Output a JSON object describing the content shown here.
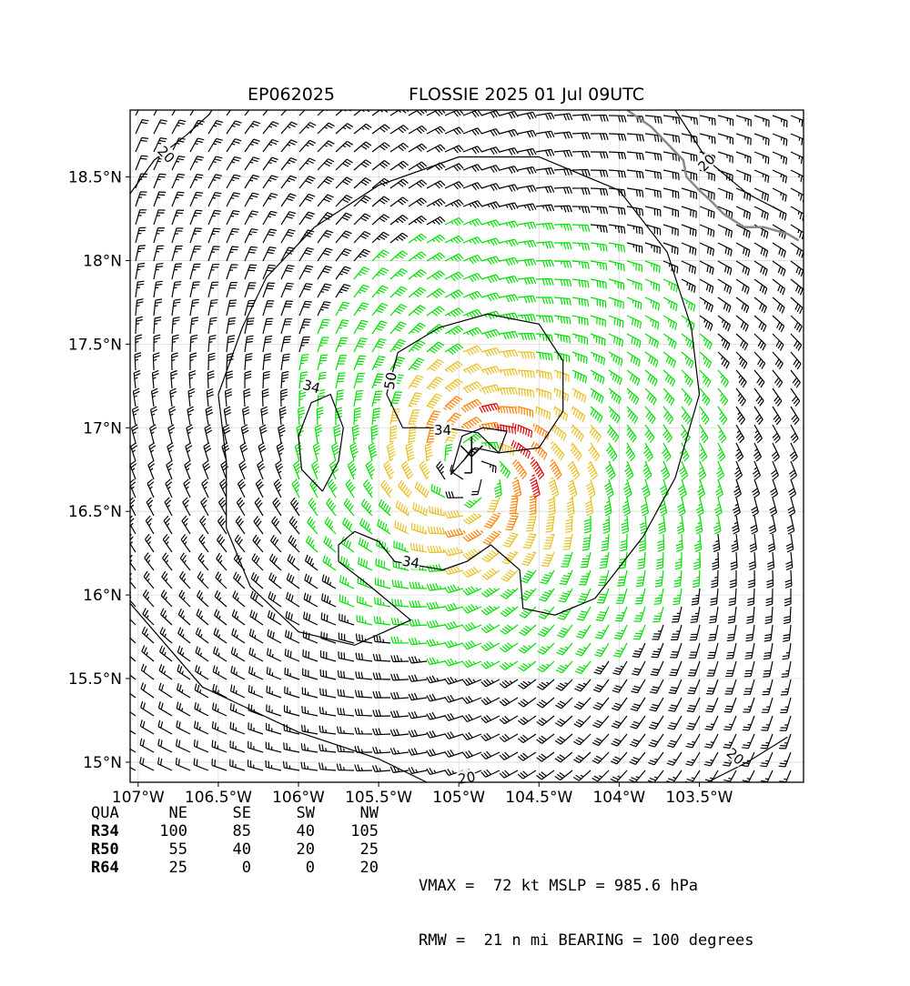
{
  "header": {
    "storm_id": "EP062025",
    "storm_title": "FLOSSIE 2025 01 Jul 09UTC"
  },
  "chart_data": {
    "type": "wind_barb_map",
    "title_left": "EP062025",
    "title_right": "FLOSSIE 2025 01 Jul 09UTC",
    "xlim": [
      -107.05,
      -102.85
    ],
    "ylim": [
      14.88,
      18.9
    ],
    "x_ticks": [
      {
        "value": -107.0,
        "label": "107°W"
      },
      {
        "value": -106.5,
        "label": "106.5°W"
      },
      {
        "value": -106.0,
        "label": "106°W"
      },
      {
        "value": -105.5,
        "label": "105.5°W"
      },
      {
        "value": -105.0,
        "label": "105°W"
      },
      {
        "value": -104.5,
        "label": "104.5°W"
      },
      {
        "value": -104.0,
        "label": "104°W"
      },
      {
        "value": -103.5,
        "label": "103.5°W"
      }
    ],
    "y_ticks": [
      {
        "value": 15.0,
        "label": "15°N"
      },
      {
        "value": 15.5,
        "label": "15.5°N"
      },
      {
        "value": 16.0,
        "label": "16°N"
      },
      {
        "value": 16.5,
        "label": "16.5°N"
      },
      {
        "value": 17.0,
        "label": "17°N"
      },
      {
        "value": 17.5,
        "label": "17.5°N"
      },
      {
        "value": 18.0,
        "label": "18°N"
      },
      {
        "value": 18.5,
        "label": "18.5°N"
      }
    ],
    "grid": true,
    "center": {
      "lon": -104.92,
      "lat": 16.73
    },
    "rmw_deg": 0.35,
    "vmax_kt": 72,
    "wind_categories": [
      {
        "min_kt": 0,
        "max_kt": 34,
        "color": "#000000"
      },
      {
        "min_kt": 34,
        "max_kt": 50,
        "color": "#00e000"
      },
      {
        "min_kt": 50,
        "max_kt": 64,
        "color": "#e8c020"
      },
      {
        "min_kt": 64,
        "max_kt": 72,
        "color": "#ff7f00"
      },
      {
        "min_kt": 72,
        "max_kt": 200,
        "color": "#e00000"
      }
    ],
    "contours": [
      {
        "level": "34",
        "points": [
          [
            -105.75,
            16.2
          ],
          [
            -105.55,
            16.05
          ],
          [
            -105.3,
            15.85
          ],
          [
            -105.65,
            15.7
          ],
          [
            -106.0,
            15.78
          ],
          [
            -106.3,
            16.05
          ],
          [
            -106.45,
            16.4
          ],
          [
            -106.45,
            16.8
          ],
          [
            -106.5,
            17.2
          ],
          [
            -106.35,
            17.6
          ],
          [
            -106.2,
            17.9
          ],
          [
            -105.9,
            18.2
          ],
          [
            -105.5,
            18.45
          ],
          [
            -105.0,
            18.62
          ],
          [
            -104.5,
            18.62
          ],
          [
            -104.0,
            18.42
          ],
          [
            -103.7,
            18.05
          ],
          [
            -103.55,
            17.6
          ],
          [
            -103.5,
            17.2
          ],
          [
            -103.65,
            16.7
          ],
          [
            -103.85,
            16.35
          ],
          [
            -104.15,
            15.98
          ],
          [
            -104.4,
            15.88
          ],
          [
            -104.6,
            15.92
          ],
          [
            -104.62,
            16.15
          ],
          [
            -104.8,
            16.3
          ],
          [
            -104.95,
            16.2
          ],
          [
            -105.1,
            16.15
          ],
          [
            -105.4,
            16.2
          ],
          [
            -105.5,
            16.32
          ],
          [
            -105.65,
            16.38
          ],
          [
            -105.75,
            16.3
          ],
          [
            -105.75,
            16.2
          ]
        ]
      },
      {
        "level": "34",
        "points": [
          [
            -105.85,
            16.62
          ],
          [
            -105.98,
            16.75
          ],
          [
            -106.0,
            16.95
          ],
          [
            -105.92,
            17.15
          ],
          [
            -105.8,
            17.2
          ],
          [
            -105.72,
            17.0
          ],
          [
            -105.75,
            16.8
          ],
          [
            -105.85,
            16.62
          ]
        ]
      },
      {
        "level": "34",
        "points": [
          [
            -105.05,
            16.72
          ],
          [
            -104.98,
            16.95
          ],
          [
            -104.85,
            17.0
          ],
          [
            -104.7,
            16.98
          ],
          [
            -104.75,
            16.85
          ],
          [
            -104.9,
            16.88
          ],
          [
            -105.05,
            16.72
          ]
        ]
      },
      {
        "level": "50",
        "points": [
          [
            -105.35,
            17.0
          ],
          [
            -105.45,
            17.2
          ],
          [
            -105.38,
            17.45
          ],
          [
            -105.12,
            17.6
          ],
          [
            -104.82,
            17.68
          ],
          [
            -104.5,
            17.62
          ],
          [
            -104.35,
            17.4
          ],
          [
            -104.35,
            17.1
          ],
          [
            -104.5,
            16.88
          ],
          [
            -104.75,
            16.85
          ],
          [
            -104.88,
            16.97
          ],
          [
            -105.08,
            17.0
          ],
          [
            -105.35,
            17.0
          ]
        ]
      },
      {
        "level": "20",
        "points": [
          [
            -107.05,
            18.4
          ],
          [
            -106.9,
            18.6
          ],
          [
            -106.7,
            18.75
          ],
          [
            -106.55,
            18.88
          ]
        ]
      },
      {
        "level": "20",
        "points": [
          [
            -103.65,
            18.9
          ],
          [
            -103.45,
            18.6
          ],
          [
            -103.2,
            18.4
          ],
          [
            -103.0,
            18.3
          ]
        ]
      },
      {
        "level": "20",
        "points": [
          [
            -107.05,
            15.95
          ],
          [
            -106.6,
            15.45
          ],
          [
            -106.0,
            15.18
          ],
          [
            -105.5,
            15.02
          ],
          [
            -105.2,
            14.88
          ]
        ]
      },
      {
        "level": "20",
        "points": [
          [
            -103.45,
            14.88
          ],
          [
            -103.2,
            15.0
          ],
          [
            -102.95,
            15.15
          ]
        ]
      }
    ],
    "contour_labels": [
      {
        "text": "34",
        "lon": -105.3,
        "lat": 16.19,
        "angle": 10
      },
      {
        "text": "34",
        "lon": -105.92,
        "lat": 17.24,
        "angle": 15
      },
      {
        "text": "34",
        "lon": -105.1,
        "lat": 16.98,
        "angle": 0
      },
      {
        "text": "50",
        "lon": -105.42,
        "lat": 17.28,
        "angle": -80
      },
      {
        "text": "20",
        "lon": -106.83,
        "lat": 18.63,
        "angle": 45
      },
      {
        "text": "20",
        "lon": -103.45,
        "lat": 18.58,
        "angle": -45
      },
      {
        "text": "20",
        "lon": -104.95,
        "lat": 14.9,
        "angle": -10
      },
      {
        "text": "20",
        "lon": -103.28,
        "lat": 15.03,
        "angle": 40
      }
    ],
    "coastline": [
      [
        -103.95,
        18.9
      ],
      [
        -103.8,
        18.8
      ],
      [
        -103.7,
        18.7
      ],
      [
        -103.6,
        18.6
      ],
      [
        -103.58,
        18.5
      ],
      [
        -103.5,
        18.42
      ],
      [
        -103.42,
        18.35
      ],
      [
        -103.35,
        18.28
      ],
      [
        -103.22,
        18.2
      ],
      [
        -103.1,
        18.2
      ],
      [
        -102.95,
        18.16
      ],
      [
        -102.88,
        18.12
      ]
    ]
  },
  "table": {
    "header": [
      "QUA",
      "NE",
      "SE",
      "SW",
      "NW"
    ],
    "rows": [
      [
        "R34",
        "100",
        "85",
        "40",
        "105"
      ],
      [
        "R50",
        "55",
        "40",
        "20",
        "25"
      ],
      [
        "R64",
        "25",
        "0",
        "0",
        "20"
      ]
    ]
  },
  "stats": {
    "line1": "VMAX =  72 kt MSLP = 985.6 hPa",
    "line2": "RMW =  21 n mi BEARING = 100 degrees"
  }
}
